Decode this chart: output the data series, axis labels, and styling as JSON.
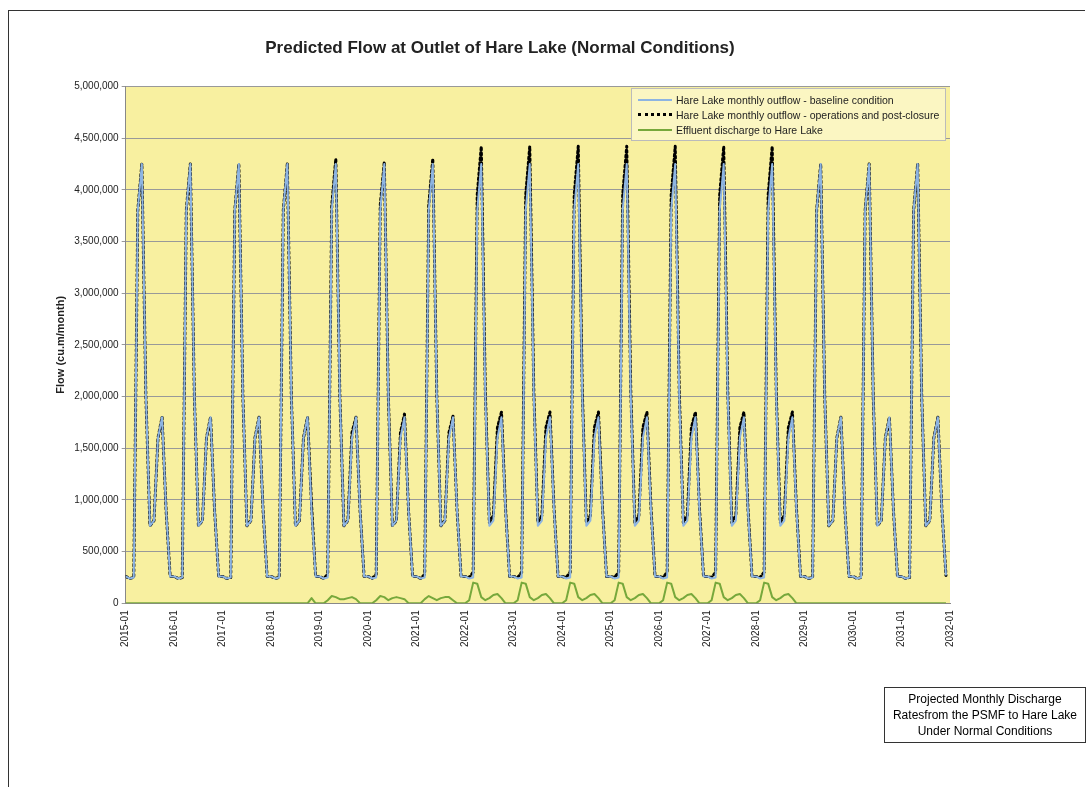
{
  "chart_data": {
    "type": "line",
    "title": "Predicted Flow at Outlet of Hare Lake (Normal Conditions)",
    "ylabel": "Flow (cu.m/month)",
    "x": [
      "2015-01",
      "2015-02",
      "2015-03",
      "2015-04",
      "2015-05",
      "2015-06",
      "2015-07",
      "2015-08",
      "2015-09",
      "2015-10",
      "2015-11",
      "2015-12",
      "2016-01",
      "2016-02",
      "2016-03",
      "2016-04",
      "2016-05",
      "2016-06",
      "2016-07",
      "2016-08",
      "2016-09",
      "2016-10",
      "2016-11",
      "2016-12",
      "2017-01",
      "2017-02",
      "2017-03",
      "2017-04",
      "2017-05",
      "2017-06",
      "2017-07",
      "2017-08",
      "2017-09",
      "2017-10",
      "2017-11",
      "2017-12",
      "2018-01",
      "2018-02",
      "2018-03",
      "2018-04",
      "2018-05",
      "2018-06",
      "2018-07",
      "2018-08",
      "2018-09",
      "2018-10",
      "2018-11",
      "2018-12",
      "2019-01",
      "2019-02",
      "2019-03",
      "2019-04",
      "2019-05",
      "2019-06",
      "2019-07",
      "2019-08",
      "2019-09",
      "2019-10",
      "2019-11",
      "2019-12",
      "2020-01",
      "2020-02",
      "2020-03",
      "2020-04",
      "2020-05",
      "2020-06",
      "2020-07",
      "2020-08",
      "2020-09",
      "2020-10",
      "2020-11",
      "2020-12",
      "2021-01",
      "2021-02",
      "2021-03",
      "2021-04",
      "2021-05",
      "2021-06",
      "2021-07",
      "2021-08",
      "2021-09",
      "2021-10",
      "2021-11",
      "2021-12",
      "2022-01",
      "2022-02",
      "2022-03",
      "2022-04",
      "2022-05",
      "2022-06",
      "2022-07",
      "2022-08",
      "2022-09",
      "2022-10",
      "2022-11",
      "2022-12",
      "2023-01",
      "2023-02",
      "2023-03",
      "2023-04",
      "2023-05",
      "2023-06",
      "2023-07",
      "2023-08",
      "2023-09",
      "2023-10",
      "2023-11",
      "2023-12",
      "2024-01",
      "2024-02",
      "2024-03",
      "2024-04",
      "2024-05",
      "2024-06",
      "2024-07",
      "2024-08",
      "2024-09",
      "2024-10",
      "2024-11",
      "2024-12",
      "2025-01",
      "2025-02",
      "2025-03",
      "2025-04",
      "2025-05",
      "2025-06",
      "2025-07",
      "2025-08",
      "2025-09",
      "2025-10",
      "2025-11",
      "2025-12",
      "2026-01",
      "2026-02",
      "2026-03",
      "2026-04",
      "2026-05",
      "2026-06",
      "2026-07",
      "2026-08",
      "2026-09",
      "2026-10",
      "2026-11",
      "2026-12",
      "2027-01",
      "2027-02",
      "2027-03",
      "2027-04",
      "2027-05",
      "2027-06",
      "2027-07",
      "2027-08",
      "2027-09",
      "2027-10",
      "2027-11",
      "2027-12",
      "2028-01",
      "2028-02",
      "2028-03",
      "2028-04",
      "2028-05",
      "2028-06",
      "2028-07",
      "2028-08",
      "2028-09",
      "2028-10",
      "2028-11",
      "2028-12",
      "2029-01",
      "2029-02",
      "2029-03",
      "2029-04",
      "2029-05",
      "2029-06",
      "2029-07",
      "2029-08",
      "2029-09",
      "2029-10",
      "2029-11",
      "2029-12",
      "2030-01",
      "2030-02",
      "2030-03",
      "2030-04",
      "2030-05",
      "2030-06",
      "2030-07",
      "2030-08",
      "2030-09",
      "2030-10",
      "2030-11",
      "2030-12",
      "2031-01",
      "2031-02",
      "2031-03",
      "2031-04",
      "2031-05",
      "2031-06",
      "2031-07",
      "2031-08",
      "2031-09",
      "2031-10",
      "2031-11",
      "2031-12"
    ],
    "series": [
      {
        "name": "Hare Lake monthly outflow - baseline condition",
        "color": "#8db4e2",
        "line_style": "solid",
        "values": [
          260000,
          240000,
          250000,
          3800000,
          4250000,
          2000000,
          750000,
          800000,
          1600000,
          1800000,
          900000,
          260000,
          260000,
          240000,
          250000,
          3800000,
          4250000,
          2000000,
          750000,
          800000,
          1600000,
          1800000,
          900000,
          260000,
          260000,
          240000,
          250000,
          3800000,
          4250000,
          2000000,
          750000,
          800000,
          1600000,
          1800000,
          900000,
          260000,
          260000,
          240000,
          250000,
          3800000,
          4250000,
          2000000,
          750000,
          800000,
          1600000,
          1800000,
          900000,
          260000,
          260000,
          240000,
          250000,
          3800000,
          4250000,
          2000000,
          750000,
          800000,
          1600000,
          1800000,
          900000,
          260000,
          260000,
          240000,
          250000,
          3800000,
          4250000,
          2000000,
          750000,
          800000,
          1600000,
          1800000,
          900000,
          260000,
          260000,
          240000,
          250000,
          3800000,
          4250000,
          2000000,
          750000,
          800000,
          1600000,
          1800000,
          900000,
          260000,
          260000,
          240000,
          250000,
          3800000,
          4250000,
          2000000,
          750000,
          800000,
          1600000,
          1800000,
          900000,
          260000,
          260000,
          240000,
          250000,
          3800000,
          4250000,
          2000000,
          750000,
          800000,
          1600000,
          1800000,
          900000,
          260000,
          260000,
          240000,
          250000,
          3800000,
          4250000,
          2000000,
          750000,
          800000,
          1600000,
          1800000,
          900000,
          260000,
          260000,
          240000,
          250000,
          3800000,
          4250000,
          2000000,
          750000,
          800000,
          1600000,
          1800000,
          900000,
          260000,
          260000,
          240000,
          250000,
          3800000,
          4250000,
          2000000,
          750000,
          800000,
          1600000,
          1800000,
          900000,
          260000,
          260000,
          240000,
          250000,
          3800000,
          4250000,
          2000000,
          750000,
          800000,
          1600000,
          1800000,
          900000,
          260000,
          260000,
          240000,
          250000,
          3800000,
          4250000,
          2000000,
          750000,
          800000,
          1600000,
          1800000,
          900000,
          260000,
          260000,
          240000,
          250000,
          3800000,
          4250000,
          2000000,
          750000,
          800000,
          1600000,
          1800000,
          900000,
          260000,
          260000,
          240000,
          250000,
          3800000,
          4250000,
          2000000,
          750000,
          800000,
          1600000,
          1800000,
          900000,
          260000,
          260000,
          240000,
          250000,
          3800000,
          4250000,
          2000000,
          750000,
          800000,
          1600000,
          1800000,
          900000,
          270000
        ]
      },
      {
        "name": "Hare Lake monthly outflow - operations and post-closure",
        "color": "#000000",
        "line_style": "dotted",
        "values": [
          260000,
          240000,
          250000,
          3800000,
          4250000,
          2000000,
          750000,
          800000,
          1600000,
          1800000,
          900000,
          260000,
          260000,
          240000,
          250000,
          3800000,
          4250000,
          2000000,
          750000,
          800000,
          1600000,
          1800000,
          900000,
          260000,
          260000,
          240000,
          250000,
          3800000,
          4250000,
          2000000,
          750000,
          800000,
          1600000,
          1800000,
          900000,
          260000,
          260000,
          240000,
          250000,
          3800000,
          4250000,
          2000000,
          750000,
          800000,
          1600000,
          1800000,
          950000,
          260000,
          260000,
          240000,
          280000,
          3850000,
          4300000,
          2000000,
          750000,
          800000,
          1650000,
          1800000,
          900000,
          260000,
          260000,
          240000,
          280000,
          3850000,
          4270000,
          2000000,
          750000,
          800000,
          1650000,
          1830000,
          900000,
          260000,
          260000,
          240000,
          280000,
          3850000,
          4300000,
          2000000,
          750000,
          800000,
          1650000,
          1810000,
          900000,
          260000,
          260000,
          250000,
          300000,
          3950000,
          4420000,
          2050000,
          780000,
          850000,
          1700000,
          1850000,
          920000,
          260000,
          260000,
          250000,
          300000,
          3950000,
          4420000,
          2050000,
          780000,
          850000,
          1700000,
          1850000,
          920000,
          260000,
          260000,
          250000,
          300000,
          3950000,
          4420000,
          2050000,
          780000,
          850000,
          1700000,
          1850000,
          920000,
          260000,
          260000,
          250000,
          300000,
          3950000,
          4420000,
          2050000,
          780000,
          850000,
          1700000,
          1850000,
          920000,
          260000,
          260000,
          250000,
          300000,
          3950000,
          4420000,
          2050000,
          780000,
          850000,
          1700000,
          1850000,
          920000,
          260000,
          260000,
          250000,
          300000,
          3950000,
          4420000,
          2050000,
          780000,
          850000,
          1700000,
          1850000,
          920000,
          260000,
          260000,
          250000,
          300000,
          3950000,
          4420000,
          2050000,
          780000,
          850000,
          1700000,
          1850000,
          920000,
          260000,
          260000,
          240000,
          250000,
          3800000,
          4250000,
          2000000,
          750000,
          800000,
          1600000,
          1800000,
          900000,
          260000,
          260000,
          240000,
          250000,
          3800000,
          4250000,
          2000000,
          750000,
          800000,
          1600000,
          1800000,
          900000,
          260000,
          260000,
          240000,
          250000,
          3800000,
          4250000,
          2000000,
          750000,
          800000,
          1600000,
          1800000,
          900000,
          270000
        ]
      },
      {
        "name": "Effluent discharge to Hare Lake",
        "color": "#77a83c",
        "line_style": "solid",
        "values": [
          0,
          0,
          0,
          0,
          0,
          0,
          0,
          0,
          0,
          0,
          0,
          0,
          0,
          0,
          0,
          0,
          0,
          0,
          0,
          0,
          0,
          0,
          0,
          0,
          0,
          0,
          0,
          0,
          0,
          0,
          0,
          0,
          0,
          0,
          0,
          0,
          0,
          0,
          0,
          0,
          0,
          0,
          0,
          0,
          0,
          0,
          50000,
          0,
          0,
          0,
          30000,
          70000,
          60000,
          40000,
          40000,
          50000,
          60000,
          40000,
          0,
          0,
          0,
          0,
          30000,
          70000,
          60000,
          30000,
          50000,
          60000,
          50000,
          40000,
          0,
          0,
          0,
          0,
          40000,
          70000,
          50000,
          30000,
          50000,
          60000,
          60000,
          30000,
          0,
          0,
          0,
          30000,
          200000,
          190000,
          60000,
          30000,
          50000,
          80000,
          90000,
          50000,
          0,
          0,
          0,
          30000,
          200000,
          190000,
          60000,
          30000,
          50000,
          80000,
          90000,
          50000,
          0,
          0,
          0,
          30000,
          200000,
          190000,
          60000,
          30000,
          50000,
          80000,
          90000,
          50000,
          0,
          0,
          0,
          30000,
          200000,
          190000,
          60000,
          30000,
          50000,
          80000,
          90000,
          50000,
          0,
          0,
          0,
          30000,
          200000,
          190000,
          60000,
          30000,
          50000,
          80000,
          90000,
          50000,
          0,
          0,
          0,
          30000,
          200000,
          190000,
          60000,
          30000,
          50000,
          80000,
          90000,
          50000,
          0,
          0,
          0,
          30000,
          200000,
          190000,
          60000,
          30000,
          50000,
          80000,
          90000,
          50000,
          0,
          0,
          0,
          0,
          0,
          0,
          0,
          0,
          0,
          0,
          0,
          0,
          0,
          0,
          0,
          0,
          0,
          0,
          0,
          0,
          0,
          0,
          0,
          0,
          0,
          0,
          0,
          0,
          0,
          0,
          0,
          0,
          0,
          0,
          0,
          0,
          0,
          0
        ]
      }
    ],
    "xlim": [
      "2015-01",
      "2032-01"
    ],
    "xticks": [
      "2015-01",
      "2016-01",
      "2017-01",
      "2018-01",
      "2019-01",
      "2020-01",
      "2021-01",
      "2022-01",
      "2023-01",
      "2024-01",
      "2025-01",
      "2026-01",
      "2027-01",
      "2028-01",
      "2029-01",
      "2030-01",
      "2031-01",
      "2032-01"
    ],
    "ylim": [
      0,
      5000000
    ],
    "yticks": [
      {
        "value": 0,
        "label": "0"
      },
      {
        "value": 500000,
        "label": "500,000"
      },
      {
        "value": 1000000,
        "label": "1,000,000"
      },
      {
        "value": 1500000,
        "label": "1,500,000"
      },
      {
        "value": 2000000,
        "label": "2,000,000"
      },
      {
        "value": 2500000,
        "label": "2,500,000"
      },
      {
        "value": 3000000,
        "label": "3,000,000"
      },
      {
        "value": 3500000,
        "label": "3,500,000"
      },
      {
        "value": 4000000,
        "label": "4,000,000"
      },
      {
        "value": 4500000,
        "label": "4,500,000"
      },
      {
        "value": 5000000,
        "label": "5,000,000"
      }
    ],
    "grid": "y",
    "legend": "top right",
    "marker": "none",
    "annotations": [
      "Projected Monthly Discharge Ratesfrom the PSMF to Hare Lake Under Normal Conditions"
    ]
  }
}
